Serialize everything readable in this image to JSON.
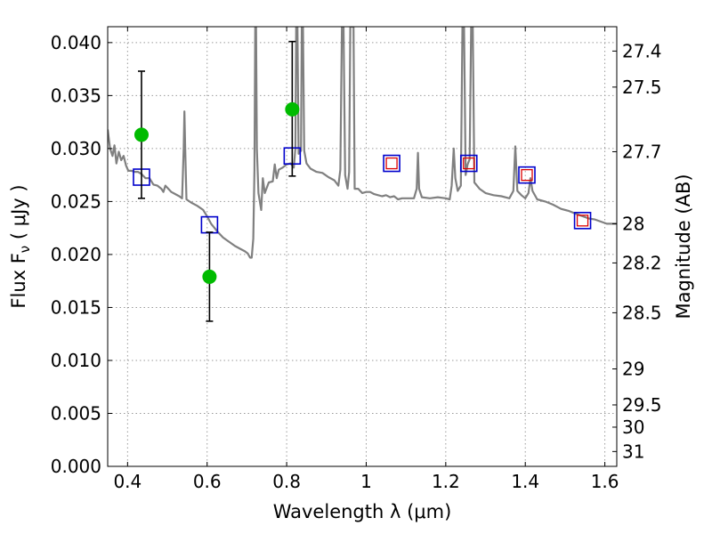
{
  "chart_data": {
    "type": "scatter",
    "xlabel": "Wavelength  λ (μm)",
    "ylabel": "Flux  F",
    "ylabel_sub": "ν",
    "ylabel_unit": " ( μJy )",
    "ylabel_right": "Magnitude (AB)",
    "xlim": [
      0.35,
      1.63
    ],
    "ylim": [
      0.0,
      0.0415
    ],
    "grid": true,
    "x_ticks": [
      {
        "value": 0.4,
        "label": "0.4"
      },
      {
        "value": 0.6,
        "label": "0.6"
      },
      {
        "value": 0.8,
        "label": "0.8"
      },
      {
        "value": 1.0,
        "label": "1"
      },
      {
        "value": 1.2,
        "label": "1.2"
      },
      {
        "value": 1.4,
        "label": "1.4"
      },
      {
        "value": 1.6,
        "label": "1.6"
      }
    ],
    "y_ticks": [
      {
        "value": 0.0,
        "label": "0.000"
      },
      {
        "value": 0.005,
        "label": "0.005"
      },
      {
        "value": 0.01,
        "label": "0.010"
      },
      {
        "value": 0.015,
        "label": "0.015"
      },
      {
        "value": 0.02,
        "label": "0.020"
      },
      {
        "value": 0.025,
        "label": "0.025"
      },
      {
        "value": 0.03,
        "label": "0.030"
      },
      {
        "value": 0.035,
        "label": "0.035"
      },
      {
        "value": 0.04,
        "label": "0.040"
      }
    ],
    "right_ticks": [
      {
        "flux": 0.0392,
        "label": "27.4"
      },
      {
        "flux": 0.0358,
        "label": "27.5"
      },
      {
        "flux": 0.0297,
        "label": "27.7"
      },
      {
        "flux": 0.0229,
        "label": "28"
      },
      {
        "flux": 0.0192,
        "label": "28.2"
      },
      {
        "flux": 0.0145,
        "label": "28.5"
      },
      {
        "flux": 0.0092,
        "label": "29"
      },
      {
        "flux": 0.0058,
        "label": "29.5"
      },
      {
        "flux": 0.0037,
        "label": "30"
      },
      {
        "flux": 0.0014,
        "label": "31"
      }
    ],
    "colors": {
      "spectrum": "#808080",
      "observed": "#00bb00",
      "model_box": "#0000cc",
      "model_inner": "#dd0000",
      "errorbar": "#000000",
      "grid": "#9a9a9a"
    },
    "observed": [
      {
        "x": 0.435,
        "y": 0.0313,
        "ylo": 0.0253,
        "yhi": 0.0373
      },
      {
        "x": 0.606,
        "y": 0.0179,
        "ylo": 0.0137,
        "yhi": 0.0221
      },
      {
        "x": 0.814,
        "y": 0.0337,
        "ylo": 0.0274,
        "yhi": 0.0401
      }
    ],
    "model_photometry": [
      {
        "x": 0.435,
        "y": 0.0273,
        "inner": false
      },
      {
        "x": 0.606,
        "y": 0.0228,
        "inner": false
      },
      {
        "x": 0.814,
        "y": 0.0293,
        "inner": false
      },
      {
        "x": 1.064,
        "y": 0.0286,
        "inner": true
      },
      {
        "x": 1.258,
        "y": 0.0286,
        "inner": true
      },
      {
        "x": 1.404,
        "y": 0.0275,
        "inner": true
      },
      {
        "x": 1.544,
        "y": 0.0232,
        "inner": true
      }
    ],
    "spectrum": [
      [
        0.35,
        0.0318
      ],
      [
        0.356,
        0.03
      ],
      [
        0.362,
        0.0293
      ],
      [
        0.367,
        0.0303
      ],
      [
        0.372,
        0.0286
      ],
      [
        0.378,
        0.0297
      ],
      [
        0.384,
        0.0289
      ],
      [
        0.39,
        0.0293
      ],
      [
        0.396,
        0.0284
      ],
      [
        0.402,
        0.0279
      ],
      [
        0.41,
        0.0279
      ],
      [
        0.418,
        0.0278
      ],
      [
        0.426,
        0.0278
      ],
      [
        0.435,
        0.0276
      ],
      [
        0.445,
        0.0272
      ],
      [
        0.455,
        0.0272
      ],
      [
        0.465,
        0.0266
      ],
      [
        0.475,
        0.0265
      ],
      [
        0.485,
        0.0262
      ],
      [
        0.49,
        0.0259
      ],
      [
        0.495,
        0.0265
      ],
      [
        0.5,
        0.0263
      ],
      [
        0.51,
        0.0259
      ],
      [
        0.52,
        0.0257
      ],
      [
        0.53,
        0.0255
      ],
      [
        0.537,
        0.0253
      ],
      [
        0.541,
        0.03
      ],
      [
        0.543,
        0.0335
      ],
      [
        0.545,
        0.03
      ],
      [
        0.548,
        0.0252
      ],
      [
        0.56,
        0.0249
      ],
      [
        0.575,
        0.0246
      ],
      [
        0.59,
        0.0242
      ],
      [
        0.6,
        0.0236
      ],
      [
        0.61,
        0.0229
      ],
      [
        0.625,
        0.0222
      ],
      [
        0.64,
        0.0216
      ],
      [
        0.655,
        0.0212
      ],
      [
        0.67,
        0.0208
      ],
      [
        0.685,
        0.0205
      ],
      [
        0.695,
        0.0203
      ],
      [
        0.702,
        0.0201
      ],
      [
        0.708,
        0.0197
      ],
      [
        0.712,
        0.0197
      ],
      [
        0.716,
        0.0215
      ],
      [
        0.719,
        0.028
      ],
      [
        0.721,
        0.0415
      ],
      [
        0.723,
        0.0415
      ],
      [
        0.725,
        0.03
      ],
      [
        0.729,
        0.0258
      ],
      [
        0.736,
        0.0242
      ],
      [
        0.74,
        0.0272
      ],
      [
        0.745,
        0.0258
      ],
      [
        0.755,
        0.0268
      ],
      [
        0.765,
        0.0269
      ],
      [
        0.77,
        0.0285
      ],
      [
        0.775,
        0.0272
      ],
      [
        0.78,
        0.028
      ],
      [
        0.79,
        0.0282
      ],
      [
        0.8,
        0.0285
      ],
      [
        0.81,
        0.0286
      ],
      [
        0.818,
        0.0282
      ],
      [
        0.822,
        0.03
      ],
      [
        0.824,
        0.0415
      ],
      [
        0.827,
        0.0415
      ],
      [
        0.83,
        0.0295
      ],
      [
        0.836,
        0.0298
      ],
      [
        0.838,
        0.0415
      ],
      [
        0.841,
        0.0415
      ],
      [
        0.844,
        0.0298
      ],
      [
        0.85,
        0.0286
      ],
      [
        0.86,
        0.0281
      ],
      [
        0.875,
        0.0278
      ],
      [
        0.89,
        0.0277
      ],
      [
        0.905,
        0.0273
      ],
      [
        0.92,
        0.027
      ],
      [
        0.93,
        0.0265
      ],
      [
        0.935,
        0.028
      ],
      [
        0.939,
        0.0415
      ],
      [
        0.943,
        0.0415
      ],
      [
        0.947,
        0.0275
      ],
      [
        0.953,
        0.0262
      ],
      [
        0.957,
        0.0278
      ],
      [
        0.96,
        0.0415
      ],
      [
        0.963,
        0.0415
      ],
      [
        0.966,
        0.0415
      ],
      [
        0.968,
        0.0415
      ],
      [
        0.971,
        0.0262
      ],
      [
        0.98,
        0.0262
      ],
      [
        0.99,
        0.0258
      ],
      [
        1.0,
        0.0259
      ],
      [
        1.01,
        0.0259
      ],
      [
        1.02,
        0.0257
      ],
      [
        1.03,
        0.0256
      ],
      [
        1.04,
        0.0255
      ],
      [
        1.05,
        0.0256
      ],
      [
        1.06,
        0.0254
      ],
      [
        1.07,
        0.0255
      ],
      [
        1.08,
        0.0252
      ],
      [
        1.09,
        0.0253
      ],
      [
        1.1,
        0.0253
      ],
      [
        1.11,
        0.0253
      ],
      [
        1.12,
        0.0253
      ],
      [
        1.127,
        0.0262
      ],
      [
        1.13,
        0.0296
      ],
      [
        1.133,
        0.0262
      ],
      [
        1.14,
        0.0254
      ],
      [
        1.16,
        0.0253
      ],
      [
        1.18,
        0.0254
      ],
      [
        1.2,
        0.0253
      ],
      [
        1.21,
        0.0252
      ],
      [
        1.215,
        0.0265
      ],
      [
        1.22,
        0.03
      ],
      [
        1.224,
        0.0272
      ],
      [
        1.23,
        0.026
      ],
      [
        1.238,
        0.0265
      ],
      [
        1.242,
        0.0415
      ],
      [
        1.246,
        0.0415
      ],
      [
        1.25,
        0.0275
      ],
      [
        1.255,
        0.0285
      ],
      [
        1.26,
        0.029
      ],
      [
        1.264,
        0.0415
      ],
      [
        1.268,
        0.0415
      ],
      [
        1.272,
        0.0268
      ],
      [
        1.285,
        0.0262
      ],
      [
        1.3,
        0.0258
      ],
      [
        1.32,
        0.0256
      ],
      [
        1.34,
        0.0255
      ],
      [
        1.36,
        0.0253
      ],
      [
        1.37,
        0.026
      ],
      [
        1.375,
        0.0302
      ],
      [
        1.38,
        0.026
      ],
      [
        1.39,
        0.0256
      ],
      [
        1.4,
        0.0253
      ],
      [
        1.408,
        0.0258
      ],
      [
        1.413,
        0.0272
      ],
      [
        1.418,
        0.026
      ],
      [
        1.43,
        0.0252
      ],
      [
        1.45,
        0.025
      ],
      [
        1.47,
        0.0247
      ],
      [
        1.49,
        0.0243
      ],
      [
        1.51,
        0.0241
      ],
      [
        1.53,
        0.0238
      ],
      [
        1.545,
        0.0236
      ],
      [
        1.56,
        0.0234
      ],
      [
        1.575,
        0.0233
      ],
      [
        1.59,
        0.0231
      ],
      [
        1.605,
        0.0229
      ],
      [
        1.62,
        0.0229
      ],
      [
        1.63,
        0.0229
      ]
    ]
  }
}
